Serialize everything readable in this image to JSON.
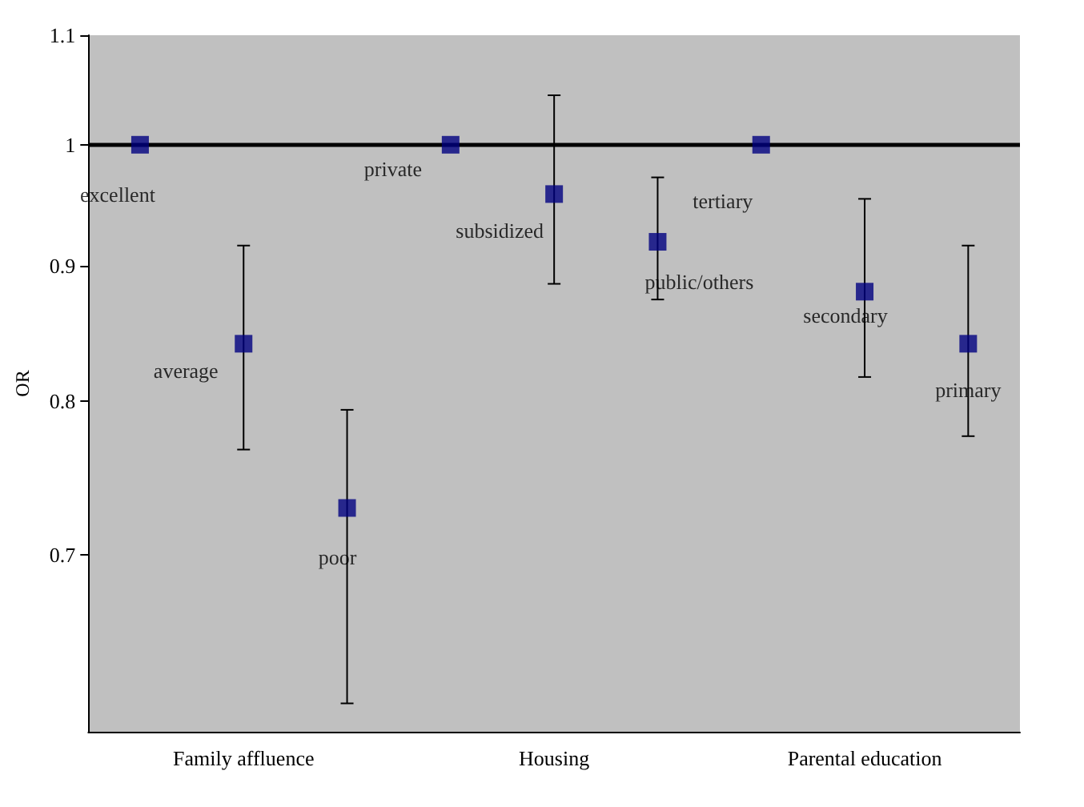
{
  "chart_data": {
    "type": "scatter",
    "ylabel": "OR",
    "log": "y",
    "ylim": [
      0.6,
      1.1
    ],
    "yticks": [
      0.7,
      0.8,
      0.9,
      1,
      1.1
    ],
    "grid": false,
    "legend": false,
    "marker": "square",
    "categories": [
      null,
      "Family affluence",
      null,
      null,
      "Housing",
      null,
      null,
      "Parental education",
      null
    ],
    "ref_lines": [
      {
        "axis": "y",
        "value": 1,
        "color": "#000000"
      }
    ],
    "series": [
      {
        "name": "excellent",
        "color": "#000080",
        "values": [
          1,
          null,
          null,
          null,
          null,
          null,
          null,
          null,
          null
        ]
      },
      {
        "name": "average",
        "color": "#000080",
        "values": [
          null,
          0.841,
          null,
          null,
          null,
          null,
          null,
          null,
          null
        ],
        "errors": [
          null,
          [
            0.767,
            0.916
          ],
          null,
          null,
          null,
          null,
          null,
          null,
          null
        ]
      },
      {
        "name": "poor",
        "color": "#000080",
        "values": [
          null,
          null,
          0.729,
          null,
          null,
          null,
          null,
          null,
          null
        ],
        "errors": [
          null,
          null,
          [
            0.615,
            0.794
          ],
          null,
          null,
          null,
          null,
          null,
          null
        ]
      },
      {
        "name": "private",
        "color": "#000080",
        "values": [
          null,
          null,
          null,
          1,
          null,
          null,
          null,
          null,
          null
        ]
      },
      {
        "name": "subsidized",
        "color": "#000080",
        "values": [
          null,
          null,
          null,
          null,
          0.958,
          null,
          null,
          null,
          null
        ],
        "errors": [
          null,
          null,
          null,
          null,
          [
            0.886,
            1.044
          ],
          null,
          null,
          null,
          null
        ]
      },
      {
        "name": "public/others",
        "color": "#000080",
        "values": [
          null,
          null,
          null,
          null,
          null,
          0.919,
          null,
          null,
          null
        ],
        "errors": [
          null,
          null,
          null,
          null,
          null,
          [
            0.874,
            0.972
          ],
          null,
          null,
          null
        ]
      },
      {
        "name": "tertiary",
        "color": "#000080",
        "values": [
          null,
          null,
          null,
          null,
          null,
          null,
          1,
          null,
          null
        ]
      },
      {
        "name": "secondary",
        "color": "#000080",
        "values": [
          null,
          null,
          null,
          null,
          null,
          null,
          null,
          0.88,
          null
        ],
        "errors": [
          null,
          null,
          null,
          null,
          null,
          null,
          null,
          [
            0.817,
            0.954
          ],
          null
        ]
      },
      {
        "name": "primary",
        "color": "#000080",
        "values": [
          null,
          null,
          null,
          null,
          null,
          null,
          null,
          null,
          0.841
        ],
        "errors": [
          null,
          null,
          null,
          null,
          null,
          null,
          null,
          null,
          [
            0.776,
            0.916
          ]
        ]
      }
    ]
  }
}
